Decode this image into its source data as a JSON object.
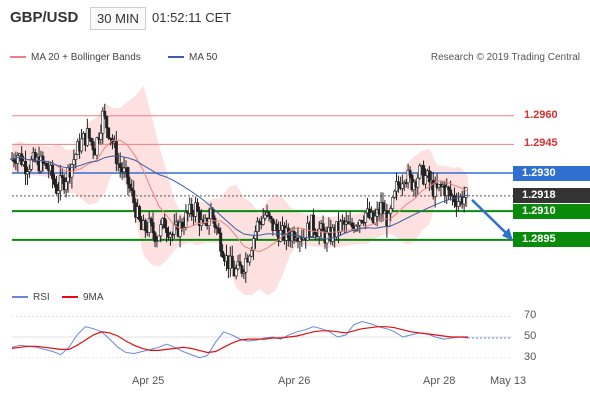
{
  "header": {
    "symbol": "GBP/USD",
    "timeframe": "30 MIN",
    "time": "01:52:11 CET"
  },
  "legend": {
    "bollinger_label": "MA 20 + Bollinger Bands",
    "ma50_label": "MA 50",
    "credit": "Research © 2019 Trading Central"
  },
  "rsi_legend": {
    "rsi_label": "RSI",
    "ma_label": "9MA"
  },
  "colors": {
    "resistance_line": "#f08080",
    "pivot_line": "#2e6fd0",
    "support_line": "#0a8a0a",
    "current_price_tag": "#333333",
    "band_fill": "#fde0e0",
    "ma20": "#f08080",
    "ma50": "#3a5fa0",
    "candle": "#222222",
    "rsi": "#6a86d8",
    "rsi_ma": "#e01010",
    "arrow": "#2e6fd0"
  },
  "chart_data": [
    {
      "type": "candlestick",
      "title": "GBP/USD 30 MIN",
      "x_ticks": [
        "Apr 25",
        "Apr 26",
        "Apr 28",
        "May 13"
      ],
      "ylim": [
        1.2875,
        1.2985
      ],
      "levels": [
        {
          "value": 1.296,
          "label": "1.2960",
          "kind": "resistance"
        },
        {
          "value": 1.2945,
          "label": "1.2945",
          "kind": "resistance"
        },
        {
          "value": 1.293,
          "label": "1.2930",
          "kind": "pivot"
        },
        {
          "value": 1.2918,
          "label": "1.2918",
          "kind": "current"
        },
        {
          "value": 1.291,
          "label": "1.2910",
          "kind": "support"
        },
        {
          "value": 1.2895,
          "label": "1.2895",
          "kind": "support"
        }
      ],
      "price_path": [
        1.2937,
        1.294,
        1.2934,
        1.2936,
        1.2935,
        1.2932,
        1.2922,
        1.2926,
        1.2935,
        1.2945,
        1.295,
        1.2943,
        1.296,
        1.295,
        1.2935,
        1.2928,
        1.2915,
        1.29,
        1.2902,
        1.2897,
        1.2904,
        1.2898,
        1.2902,
        1.2908,
        1.2912,
        1.29,
        1.291,
        1.2897,
        1.2885,
        1.2878,
        1.288,
        1.289,
        1.2903,
        1.2908,
        1.2902,
        1.2898,
        1.2897,
        1.29,
        1.2897,
        1.2903,
        1.29,
        1.2896,
        1.2899,
        1.2903,
        1.2901,
        1.2906,
        1.2909,
        1.2904,
        1.2912,
        1.2904,
        1.2922,
        1.293,
        1.2925,
        1.293,
        1.2927,
        1.292,
        1.2923,
        1.2918,
        1.2916,
        1.2918
      ],
      "series": [
        {
          "name": "MA 20 + Bollinger Bands"
        },
        {
          "name": "MA 50"
        }
      ]
    },
    {
      "type": "line",
      "title": "RSI",
      "ylim": [
        20,
        80
      ],
      "y_ticks": [
        30,
        50,
        70
      ],
      "series": [
        {
          "name": "RSI",
          "values": [
            40,
            42,
            41,
            40,
            38,
            36,
            33,
            40,
            52,
            60,
            58,
            55,
            48,
            40,
            35,
            34,
            36,
            38,
            40,
            43,
            40,
            36,
            33,
            30,
            32,
            45,
            55,
            52,
            48,
            46,
            47,
            49,
            50,
            48,
            52,
            55,
            57,
            60,
            58,
            55,
            50,
            52,
            62,
            65,
            63,
            60,
            58,
            55,
            50,
            52,
            54,
            53,
            50,
            48,
            49,
            50,
            49
          ]
        },
        {
          "name": "9MA",
          "values": [
            39,
            40,
            41,
            41,
            40,
            39,
            38,
            38,
            42,
            47,
            52,
            55,
            54,
            51,
            46,
            42,
            39,
            37,
            37,
            38,
            39,
            40,
            39,
            37,
            35,
            36,
            40,
            44,
            47,
            48,
            48,
            48,
            49,
            49,
            50,
            51,
            53,
            55,
            56,
            56,
            55,
            54,
            56,
            58,
            59,
            60,
            60,
            59,
            57,
            55,
            54,
            53,
            52,
            51,
            50,
            50,
            50
          ]
        }
      ]
    }
  ]
}
